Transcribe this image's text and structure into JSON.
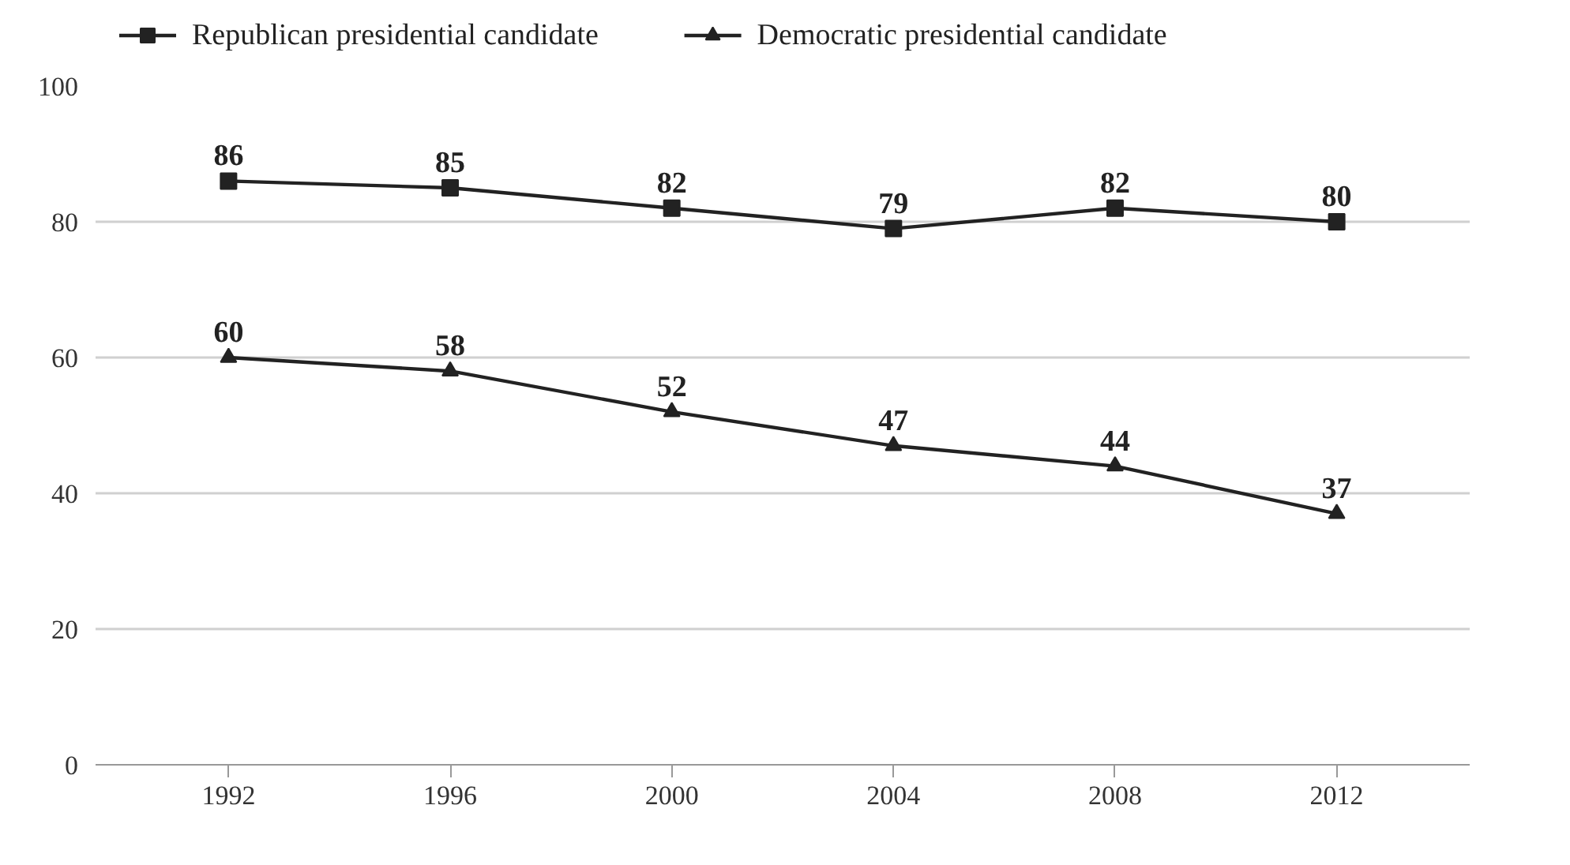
{
  "chart_data": {
    "type": "line",
    "categories": [
      "1992",
      "1996",
      "2000",
      "2004",
      "2008",
      "2012"
    ],
    "series": [
      {
        "name": "Republican presidential candidate",
        "color": "#222222",
        "marker": "square",
        "values": [
          86,
          85,
          82,
          79,
          82,
          80
        ]
      },
      {
        "name": "Democratic presidential candidate",
        "color": "#222222",
        "marker": "triangle",
        "values": [
          60,
          58,
          52,
          47,
          44,
          37
        ]
      }
    ],
    "ylim": [
      0,
      100
    ],
    "yticks": [
      0,
      20,
      40,
      60,
      80,
      100
    ],
    "grid": "y",
    "legend": "top",
    "data_labels": true,
    "line_style": "solid"
  }
}
